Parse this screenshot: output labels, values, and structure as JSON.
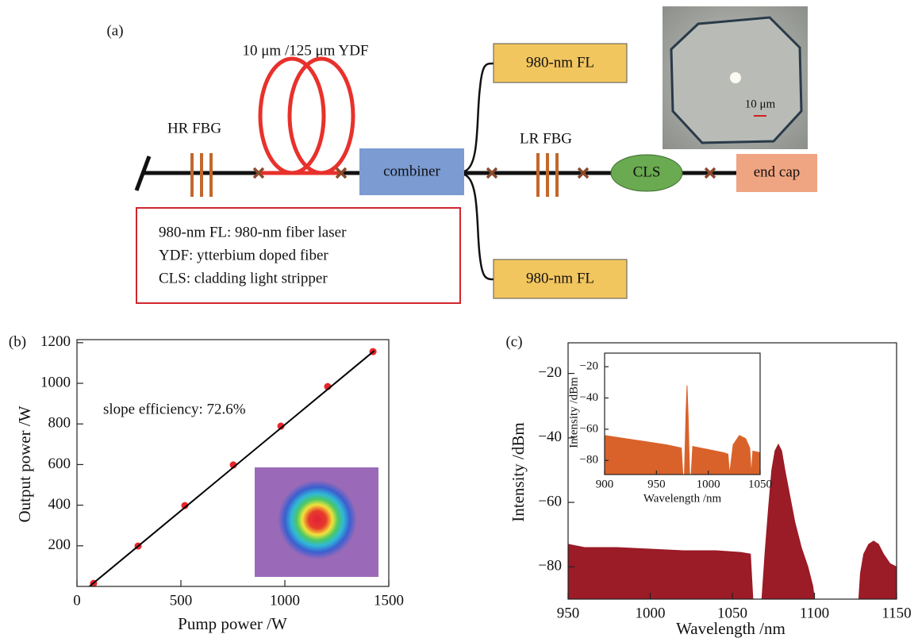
{
  "diagram": {
    "panel_label": "(a)",
    "ydf_label": "10 μm /125 μm YDF",
    "hr_fbg": "HR FBG",
    "lr_fbg": "LR FBG",
    "pump_top": "980-nm FL",
    "pump_bottom": "980-nm FL",
    "combiner": "combiner",
    "cls": "CLS",
    "end_cap": "end cap",
    "legend": [
      "980-nm FL: 980-nm fiber laser",
      "YDF: ytterbium doped fiber",
      "CLS: cladding light stripper"
    ],
    "scale_label": "10 μm"
  },
  "chart_data": [
    {
      "type": "scatter",
      "panel_label": "(b)",
      "xlabel": "Pump power /W",
      "ylabel": "Output power /W",
      "annotation": "slope efficiency: 72.6%",
      "xlim": [
        0,
        1500
      ],
      "ylim": [
        0,
        1215
      ],
      "xticks": [
        0,
        500,
        1000,
        1500
      ],
      "yticks": [
        200,
        400,
        600,
        800,
        1000,
        1200
      ],
      "series": [
        {
          "style": "markers",
          "color": "#e8262a",
          "x": [
            80,
            294,
            519,
            752,
            981,
            1206,
            1424
          ],
          "values": [
            15,
            199,
            398,
            598,
            789,
            984,
            1156
          ]
        },
        {
          "style": "line",
          "color": "#000000",
          "x": [
            60,
            1430
          ],
          "values": [
            0,
            1160
          ]
        }
      ]
    },
    {
      "type": "area",
      "panel_label": "(c)",
      "xlabel": "Wavelength /nm",
      "ylabel": "Intensity /dBm",
      "xlim": [
        950,
        1150
      ],
      "ylim": [
        -90,
        -10.5
      ],
      "xticks": [
        950,
        1000,
        1050,
        1100,
        1150
      ],
      "yticks": [
        {
          "value": -20,
          "label": "−20"
        },
        {
          "value": -40,
          "label": "−40"
        },
        {
          "value": -60,
          "label": "−60"
        },
        {
          "value": -80,
          "label": "−80"
        }
      ],
      "series": [
        {
          "color": "#9b1b27",
          "x": [
            950,
            960,
            980,
            1000,
            1020,
            1040,
            1055,
            1061,
            1062.5,
            1068,
            1070,
            1072,
            1074,
            1076,
            1078,
            1080,
            1082,
            1085,
            1088,
            1092,
            1096,
            1099,
            1100,
            1127,
            1128,
            1130,
            1133,
            1136,
            1139,
            1142,
            1146,
            1150
          ],
          "values": [
            -73,
            -74,
            -74,
            -74.5,
            -75,
            -75,
            -75.5,
            -76,
            -90,
            -90,
            -75,
            -62,
            -50,
            -44,
            -42,
            -44,
            -50,
            -58,
            -66,
            -74,
            -80,
            -86,
            -90,
            -90,
            -82,
            -76,
            -73,
            -72,
            -73,
            -76,
            -79,
            -80
          ]
        }
      ]
    },
    {
      "type": "area",
      "xlabel": "Wavelength /nm",
      "ylabel": "Intensity /dBm",
      "xlim": [
        900,
        1050
      ],
      "ylim": [
        -89,
        -11.3
      ],
      "xticks": [
        900,
        950,
        1000,
        1050
      ],
      "yticks": [
        {
          "value": -20,
          "label": "−20"
        },
        {
          "value": -40,
          "label": "−40"
        },
        {
          "value": -60,
          "label": "−60"
        },
        {
          "value": -80,
          "label": "−80"
        }
      ],
      "series": [
        {
          "color": "#d9622b",
          "x": [
            900,
            920,
            940,
            960,
            974,
            975.5,
            977,
            978.5,
            979.5,
            980.5,
            982,
            983.5,
            985,
            1000,
            1015,
            1019,
            1020.5,
            1024,
            1030,
            1036,
            1040,
            1041.5,
            1043,
            1050
          ],
          "values": [
            -64,
            -66,
            -68,
            -70,
            -72,
            -89,
            -89,
            -50,
            -32,
            -50,
            -89,
            -89,
            -71,
            -73,
            -75,
            -76,
            -89,
            -70,
            -64,
            -66,
            -72,
            -89,
            -74,
            -75
          ]
        }
      ]
    }
  ]
}
